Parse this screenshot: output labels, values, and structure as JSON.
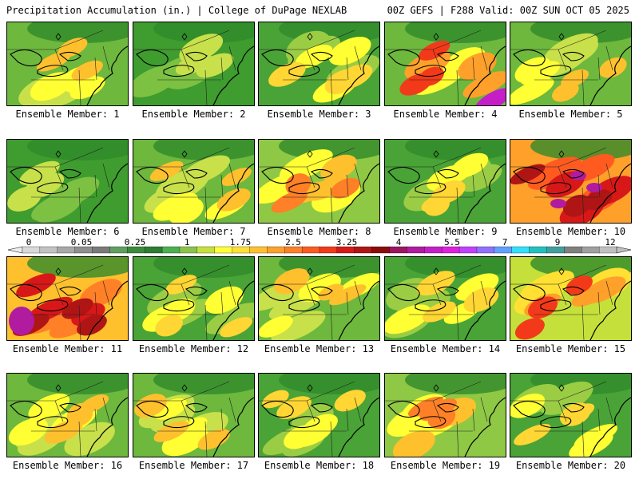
{
  "header": {
    "left_title": "Precipitation Accumulation (in.) | College of DuPage NEXLAB",
    "right_title": "00Z GEFS | F288 Valid: 00Z SUN OCT 05 2025"
  },
  "colorbar": {
    "tick_labels": [
      "0",
      "0.05",
      "0.25",
      "1",
      "1.75",
      "2.5",
      "3.25",
      "4",
      "5.5",
      "7",
      "9",
      "12"
    ],
    "colors": [
      "#d9d9d9",
      "#c2c2c2",
      "#a8a8a8",
      "#8f8f8f",
      "#7a7a7a",
      "#5f9f5f",
      "#3d8a3d",
      "#2e7d32",
      "#4caf50",
      "#8bc34a",
      "#c5e03a",
      "#ffff33",
      "#ffe033",
      "#ffc02e",
      "#ffa02a",
      "#ff8026",
      "#ff5a20",
      "#f23a1a",
      "#d81818",
      "#b01515",
      "#8c0c0c",
      "#9c1660",
      "#b01ba0",
      "#c51ec8",
      "#e020e0",
      "#c040ff",
      "#9070ff",
      "#60a0ff",
      "#30e0ff",
      "#20c0c0",
      "#40a0a0",
      "#808080",
      "#a0a0a0",
      "#c0c0c0"
    ]
  },
  "panels": [
    {
      "label": "Ensemble Member: 1",
      "intensity": "moderate"
    },
    {
      "label": "Ensemble Member: 2",
      "intensity": "low"
    },
    {
      "label": "Ensemble Member: 3",
      "intensity": "low-moderate"
    },
    {
      "label": "Ensemble Member: 4",
      "intensity": "high-southeast"
    },
    {
      "label": "Ensemble Member: 5",
      "intensity": "moderate"
    },
    {
      "label": "Ensemble Member: 6",
      "intensity": "low"
    },
    {
      "label": "Ensemble Member: 7",
      "intensity": "moderate"
    },
    {
      "label": "Ensemble Member: 8",
      "intensity": "moderate-high"
    },
    {
      "label": "Ensemble Member: 9",
      "intensity": "low-moderate"
    },
    {
      "label": "Ensemble Member: 10",
      "intensity": "very-high"
    },
    {
      "label": "Ensemble Member: 11",
      "intensity": "very-high-west"
    },
    {
      "label": "Ensemble Member: 12",
      "intensity": "low-moderate"
    },
    {
      "label": "Ensemble Member: 13",
      "intensity": "moderate"
    },
    {
      "label": "Ensemble Member: 14",
      "intensity": "low-moderate"
    },
    {
      "label": "Ensemble Member: 15",
      "intensity": "high"
    },
    {
      "label": "Ensemble Member: 16",
      "intensity": "moderate"
    },
    {
      "label": "Ensemble Member: 17",
      "intensity": "moderate"
    },
    {
      "label": "Ensemble Member: 18",
      "intensity": "low-moderate"
    },
    {
      "label": "Ensemble Member: 19",
      "intensity": "moderate-high"
    },
    {
      "label": "Ensemble Member: 20",
      "intensity": "low-moderate"
    }
  ]
}
